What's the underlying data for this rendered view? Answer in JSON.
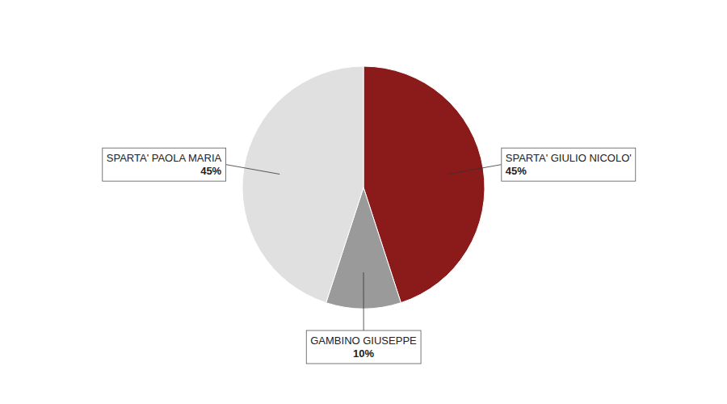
{
  "chart_data": {
    "type": "pie",
    "categories": [
      "SPARTA' GIULIO NICOLO'",
      "GAMBINO GIUSEPPE",
      "SPARTA' PAOLA MARIA"
    ],
    "values": [
      45,
      10,
      45
    ],
    "value_labels": [
      "45%",
      "10%",
      "45%"
    ],
    "colors": [
      "#8B1A1A",
      "#9A9A9A",
      "#E0E0E0"
    ],
    "data_labels": true
  }
}
